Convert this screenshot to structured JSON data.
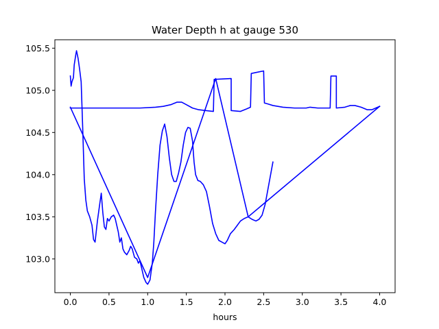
{
  "chart_data": {
    "type": "line",
    "title": "Water Depth h at gauge 530",
    "xlabel": "hours",
    "ylabel": "",
    "xlim": [
      -0.2,
      4.2
    ],
    "ylim": [
      102.6,
      105.6
    ],
    "xticks": [
      0.0,
      0.5,
      1.0,
      1.5,
      2.0,
      2.5,
      3.0,
      3.5,
      4.0
    ],
    "xtick_labels": [
      "0.0",
      "0.5",
      "1.0",
      "1.5",
      "2.0",
      "2.5",
      "3.0",
      "3.5",
      "4.0"
    ],
    "yticks": [
      103.0,
      103.5,
      104.0,
      104.5,
      105.0,
      105.5
    ],
    "ytick_labels": [
      "103.0",
      "103.5",
      "104.0",
      "104.5",
      "105.0",
      "105.5"
    ],
    "grid": false,
    "series": [
      {
        "color": "#0000ff",
        "points": [
          [
            0.0,
            105.17
          ],
          [
            0.01,
            105.05
          ],
          [
            0.02,
            105.1
          ],
          [
            0.04,
            105.15
          ],
          [
            0.05,
            105.3
          ],
          [
            0.07,
            105.42
          ],
          [
            0.08,
            105.47
          ],
          [
            0.1,
            105.38
          ],
          [
            0.12,
            105.25
          ],
          [
            0.14,
            105.1
          ],
          [
            0.16,
            104.55
          ],
          [
            0.18,
            103.95
          ],
          [
            0.2,
            103.7
          ],
          [
            0.22,
            103.57
          ],
          [
            0.25,
            103.5
          ],
          [
            0.28,
            103.4
          ],
          [
            0.3,
            103.23
          ],
          [
            0.32,
            103.2
          ],
          [
            0.35,
            103.45
          ],
          [
            0.38,
            103.65
          ],
          [
            0.4,
            103.78
          ],
          [
            0.42,
            103.55
          ],
          [
            0.44,
            103.38
          ],
          [
            0.46,
            103.35
          ],
          [
            0.48,
            103.48
          ],
          [
            0.5,
            103.45
          ],
          [
            0.53,
            103.5
          ],
          [
            0.56,
            103.52
          ],
          [
            0.58,
            103.48
          ],
          [
            0.6,
            103.4
          ],
          [
            0.62,
            103.32
          ],
          [
            0.64,
            103.2
          ],
          [
            0.66,
            103.25
          ],
          [
            0.68,
            103.12
          ],
          [
            0.7,
            103.08
          ],
          [
            0.73,
            103.05
          ],
          [
            0.76,
            103.1
          ],
          [
            0.78,
            103.15
          ],
          [
            0.8,
            103.12
          ],
          [
            0.83,
            103.02
          ],
          [
            0.86,
            103.0
          ],
          [
            0.88,
            102.95
          ],
          [
            0.9,
            102.98
          ],
          [
            0.92,
            102.9
          ],
          [
            0.95,
            102.78
          ],
          [
            0.98,
            102.72
          ],
          [
            1.0,
            102.7
          ],
          [
            1.03,
            102.75
          ],
          [
            1.06,
            102.95
          ],
          [
            1.08,
            103.2
          ],
          [
            1.1,
            103.55
          ],
          [
            1.13,
            104.0
          ],
          [
            1.16,
            104.35
          ],
          [
            1.19,
            104.52
          ],
          [
            1.22,
            104.6
          ],
          [
            1.25,
            104.45
          ],
          [
            1.28,
            104.2
          ],
          [
            1.31,
            104.0
          ],
          [
            1.34,
            103.92
          ],
          [
            1.37,
            103.92
          ],
          [
            1.4,
            104.02
          ],
          [
            1.43,
            104.15
          ],
          [
            1.46,
            104.35
          ],
          [
            1.49,
            104.5
          ],
          [
            1.52,
            104.56
          ],
          [
            1.55,
            104.55
          ],
          [
            1.58,
            104.4
          ],
          [
            1.6,
            104.15
          ],
          [
            1.62,
            104.0
          ],
          [
            1.65,
            103.93
          ],
          [
            1.68,
            103.92
          ],
          [
            1.72,
            103.88
          ],
          [
            1.76,
            103.8
          ],
          [
            1.8,
            103.62
          ],
          [
            1.84,
            103.42
          ],
          [
            1.88,
            103.3
          ],
          [
            1.92,
            103.22
          ],
          [
            1.96,
            103.2
          ],
          [
            2.0,
            103.18
          ],
          [
            2.03,
            103.22
          ],
          [
            2.07,
            103.3
          ],
          [
            2.12,
            103.35
          ],
          [
            2.16,
            103.4
          ],
          [
            2.2,
            103.45
          ],
          [
            2.25,
            103.48
          ],
          [
            2.3,
            103.5
          ],
          [
            2.35,
            103.47
          ],
          [
            2.4,
            103.45
          ],
          [
            2.44,
            103.47
          ],
          [
            2.48,
            103.52
          ],
          [
            2.52,
            103.65
          ],
          [
            2.56,
            103.85
          ],
          [
            2.6,
            104.05
          ],
          [
            2.62,
            104.15
          ]
        ]
      },
      {
        "color": "#0000ff",
        "points": [
          [
            0.0,
            104.8
          ],
          [
            1.0,
            102.78
          ],
          [
            1.88,
            105.14
          ],
          [
            2.3,
            103.5
          ],
          [
            4.0,
            104.81
          ]
        ]
      },
      {
        "color": "#0000ff",
        "points": [
          [
            0.0,
            104.79
          ],
          [
            0.3,
            104.79
          ],
          [
            0.6,
            104.79
          ],
          [
            0.9,
            104.79
          ],
          [
            1.1,
            104.8
          ],
          [
            1.2,
            104.81
          ],
          [
            1.3,
            104.83
          ],
          [
            1.38,
            104.86
          ],
          [
            1.44,
            104.86
          ],
          [
            1.5,
            104.83
          ],
          [
            1.58,
            104.79
          ],
          [
            1.66,
            104.77
          ],
          [
            1.75,
            104.76
          ],
          [
            1.85,
            104.75
          ],
          [
            1.86,
            105.13
          ],
          [
            2.08,
            105.14
          ],
          [
            2.08,
            104.76
          ],
          [
            2.2,
            104.75
          ],
          [
            2.28,
            104.78
          ],
          [
            2.33,
            104.8
          ],
          [
            2.34,
            105.2
          ],
          [
            2.5,
            105.23
          ],
          [
            2.51,
            104.85
          ],
          [
            2.55,
            104.84
          ],
          [
            2.62,
            104.82
          ],
          [
            2.75,
            104.8
          ],
          [
            2.9,
            104.79
          ],
          [
            3.05,
            104.79
          ],
          [
            3.1,
            104.8
          ],
          [
            3.2,
            104.79
          ],
          [
            3.36,
            104.79
          ],
          [
            3.37,
            105.17
          ],
          [
            3.44,
            105.17
          ],
          [
            3.44,
            104.79
          ],
          [
            3.55,
            104.8
          ],
          [
            3.62,
            104.82
          ],
          [
            3.68,
            104.82
          ],
          [
            3.76,
            104.8
          ],
          [
            3.84,
            104.77
          ],
          [
            3.9,
            104.77
          ],
          [
            3.95,
            104.79
          ],
          [
            4.0,
            104.81
          ]
        ]
      }
    ]
  }
}
